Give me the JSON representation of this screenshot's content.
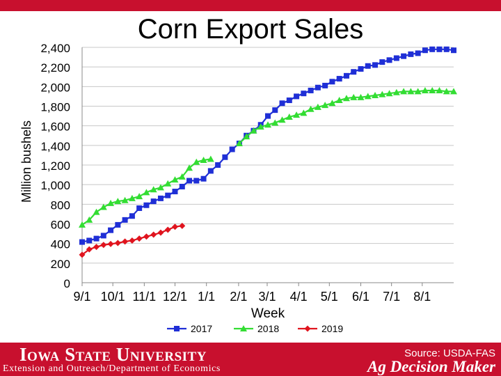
{
  "colors": {
    "accent": "#c8102e",
    "s2017": "#1f2fd6",
    "s2018": "#33dd33",
    "s2019": "#e0141e"
  },
  "footer": {
    "university": "Iowa State University",
    "subtitle": "Extension and Outreach/Department of Economics",
    "source": "Source: USDA-FAS",
    "brand": "Ag Decision Maker"
  },
  "chart_data": {
    "type": "line",
    "title": "Corn Export Sales",
    "xlabel": "Week",
    "ylabel": "Million bushels",
    "ylim": [
      0,
      2400
    ],
    "ytick_step": 200,
    "ytick_labels": [
      "0",
      "200",
      "400",
      "600",
      "800",
      "1,000",
      "1,200",
      "1,400",
      "1,600",
      "1,800",
      "2,000",
      "2,200",
      "2,400"
    ],
    "week_range": [
      0,
      52
    ],
    "x_ticks": [
      {
        "label": "9/1",
        "week": 0
      },
      {
        "label": "10/1",
        "week": 4.3
      },
      {
        "label": "11/1",
        "week": 8.7
      },
      {
        "label": "12/1",
        "week": 13.0
      },
      {
        "label": "1/1",
        "week": 17.4
      },
      {
        "label": "2/1",
        "week": 21.9
      },
      {
        "label": "3/1",
        "week": 25.9
      },
      {
        "label": "4/1",
        "week": 30.3
      },
      {
        "label": "5/1",
        "week": 34.6
      },
      {
        "label": "6/1",
        "week": 39.0
      },
      {
        "label": "7/1",
        "week": 43.3
      },
      {
        "label": "8/1",
        "week": 47.6
      }
    ],
    "series": [
      {
        "name": "2017",
        "marker": "square",
        "values": [
          415,
          430,
          450,
          480,
          535,
          590,
          640,
          680,
          760,
          790,
          830,
          860,
          890,
          930,
          980,
          1040,
          1040,
          1060,
          1140,
          1200,
          1280,
          1360,
          1420,
          1500,
          1550,
          1610,
          1700,
          1760,
          1830,
          1860,
          1900,
          1930,
          1960,
          1990,
          2010,
          2050,
          2080,
          2110,
          2150,
          2180,
          2210,
          2220,
          2250,
          2270,
          2290,
          2310,
          2330,
          2340,
          2370,
          2380,
          2380,
          2380,
          2370
        ]
      },
      {
        "name": "2018",
        "marker": "triangle",
        "values": [
          590,
          640,
          720,
          770,
          810,
          830,
          840,
          860,
          880,
          920,
          950,
          970,
          1010,
          1050,
          1080,
          1170,
          1230,
          1250,
          1260
        ]
      },
      {
        "name": "2019",
        "marker": "diamond",
        "values": [
          285,
          340,
          365,
          385,
          395,
          405,
          420,
          430,
          450,
          470,
          490,
          510,
          540,
          570,
          580
        ]
      }
    ],
    "series_2018_tail": [
      {
        "week": 22,
        "value": 1420
      },
      {
        "week": 23,
        "value": 1490
      },
      {
        "week": 24,
        "value": 1550
      },
      {
        "week": 25,
        "value": 1590
      },
      {
        "week": 26,
        "value": 1610
      },
      {
        "week": 27,
        "value": 1630
      },
      {
        "week": 28,
        "value": 1660
      },
      {
        "week": 29,
        "value": 1690
      },
      {
        "week": 30,
        "value": 1710
      },
      {
        "week": 31,
        "value": 1730
      },
      {
        "week": 32,
        "value": 1770
      },
      {
        "week": 33,
        "value": 1790
      },
      {
        "week": 34,
        "value": 1810
      },
      {
        "week": 35,
        "value": 1830
      },
      {
        "week": 36,
        "value": 1860
      },
      {
        "week": 37,
        "value": 1880
      },
      {
        "week": 38,
        "value": 1890
      },
      {
        "week": 39,
        "value": 1890
      },
      {
        "week": 40,
        "value": 1900
      },
      {
        "week": 41,
        "value": 1910
      },
      {
        "week": 42,
        "value": 1920
      },
      {
        "week": 43,
        "value": 1930
      },
      {
        "week": 44,
        "value": 1940
      },
      {
        "week": 45,
        "value": 1950
      },
      {
        "week": 46,
        "value": 1950
      },
      {
        "week": 47,
        "value": 1950
      },
      {
        "week": 48,
        "value": 1960
      },
      {
        "week": 49,
        "value": 1960
      },
      {
        "week": 50,
        "value": 1960
      },
      {
        "week": 51,
        "value": 1950
      },
      {
        "week": 52,
        "value": 1950
      }
    ]
  }
}
